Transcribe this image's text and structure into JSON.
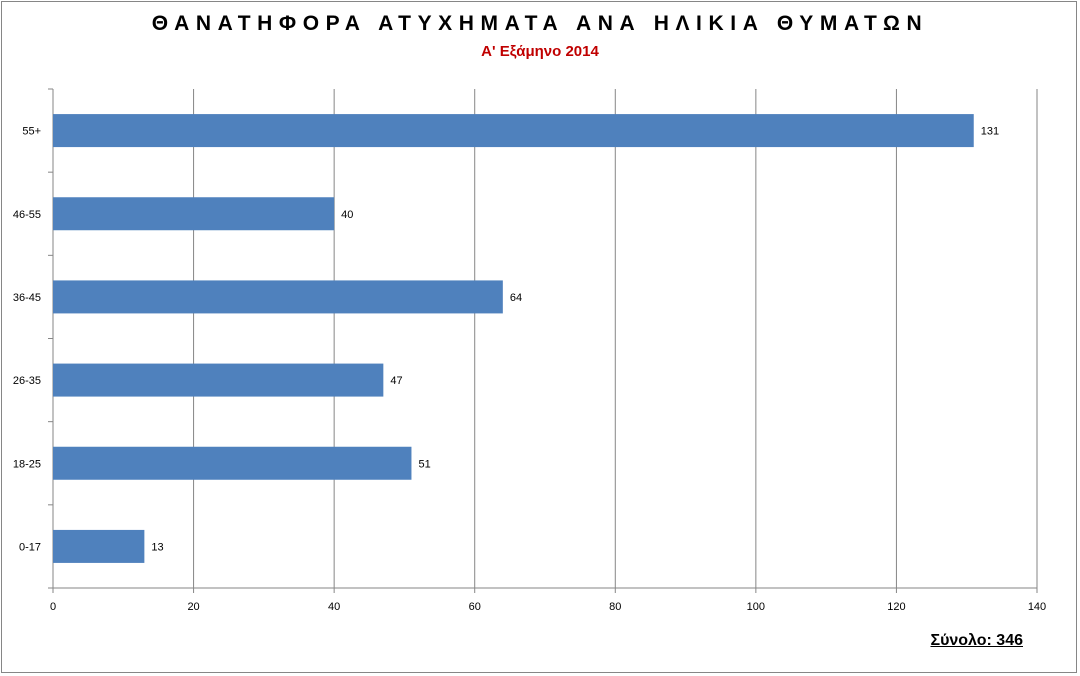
{
  "title": "ΘΑΝΑΤΗΦΟΡΑ ΑΤΥΧΗΜΑΤΑ ΑΝΑ  ΗΛΙΚΙΑ ΘΥΜΑΤΩΝ",
  "subtitle": "Α' Εξάμηνο 2014",
  "total_label": "Σύνολο: 346",
  "colors": {
    "bar": "#4f81bd",
    "title": "#000000",
    "subtitle": "#c00000",
    "grid": "#868686"
  },
  "chart_data": {
    "type": "bar",
    "orientation": "horizontal",
    "categories": [
      "0-17",
      "18-25",
      "26-35",
      "36-45",
      "46-55",
      "55+"
    ],
    "values": [
      13,
      51,
      47,
      64,
      40,
      131
    ],
    "data_labels": [
      "13",
      "51",
      "47",
      "64",
      "40",
      "131"
    ],
    "x_ticks": [
      "0",
      "20",
      "40",
      "60",
      "80",
      "100",
      "120",
      "140"
    ],
    "xlim": [
      0,
      140
    ],
    "grid": "vertical",
    "legend": "none"
  }
}
